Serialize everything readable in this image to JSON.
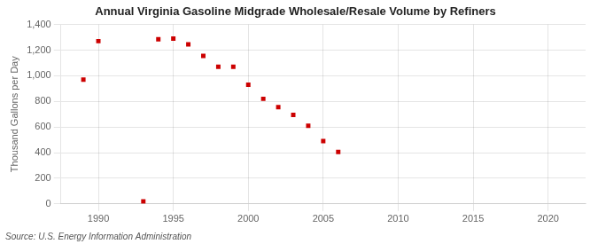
{
  "chart_data": {
    "type": "scatter",
    "title": "Annual Virginia Gasoline Midgrade Wholesale/Resale Volume by Refiners",
    "ylabel": "Thousand Gallons per Day",
    "source": "Source: U.S. Energy Information Administration",
    "x": [
      1989,
      1990,
      1993,
      1994,
      1995,
      1996,
      1997,
      1998,
      1999,
      2000,
      2001,
      2002,
      2003,
      2004,
      2005,
      2006
    ],
    "values": [
      970,
      1270,
      20,
      1285,
      1290,
      1245,
      1155,
      1070,
      1070,
      930,
      820,
      755,
      695,
      610,
      490,
      405
    ],
    "color": "#cc0000",
    "marker": "square",
    "xlim": [
      1987.5,
      2022.5
    ],
    "ylim": [
      0,
      1400
    ],
    "xticks": [
      1990,
      1995,
      2000,
      2005,
      2010,
      2015,
      2020
    ],
    "yticks": [
      0,
      200,
      400,
      600,
      800,
      {
        "value": 1000,
        "label": "1,000"
      },
      {
        "value": 1200,
        "label": "1,200"
      },
      {
        "value": 1400,
        "label": "1,400"
      }
    ],
    "grid": true
  }
}
